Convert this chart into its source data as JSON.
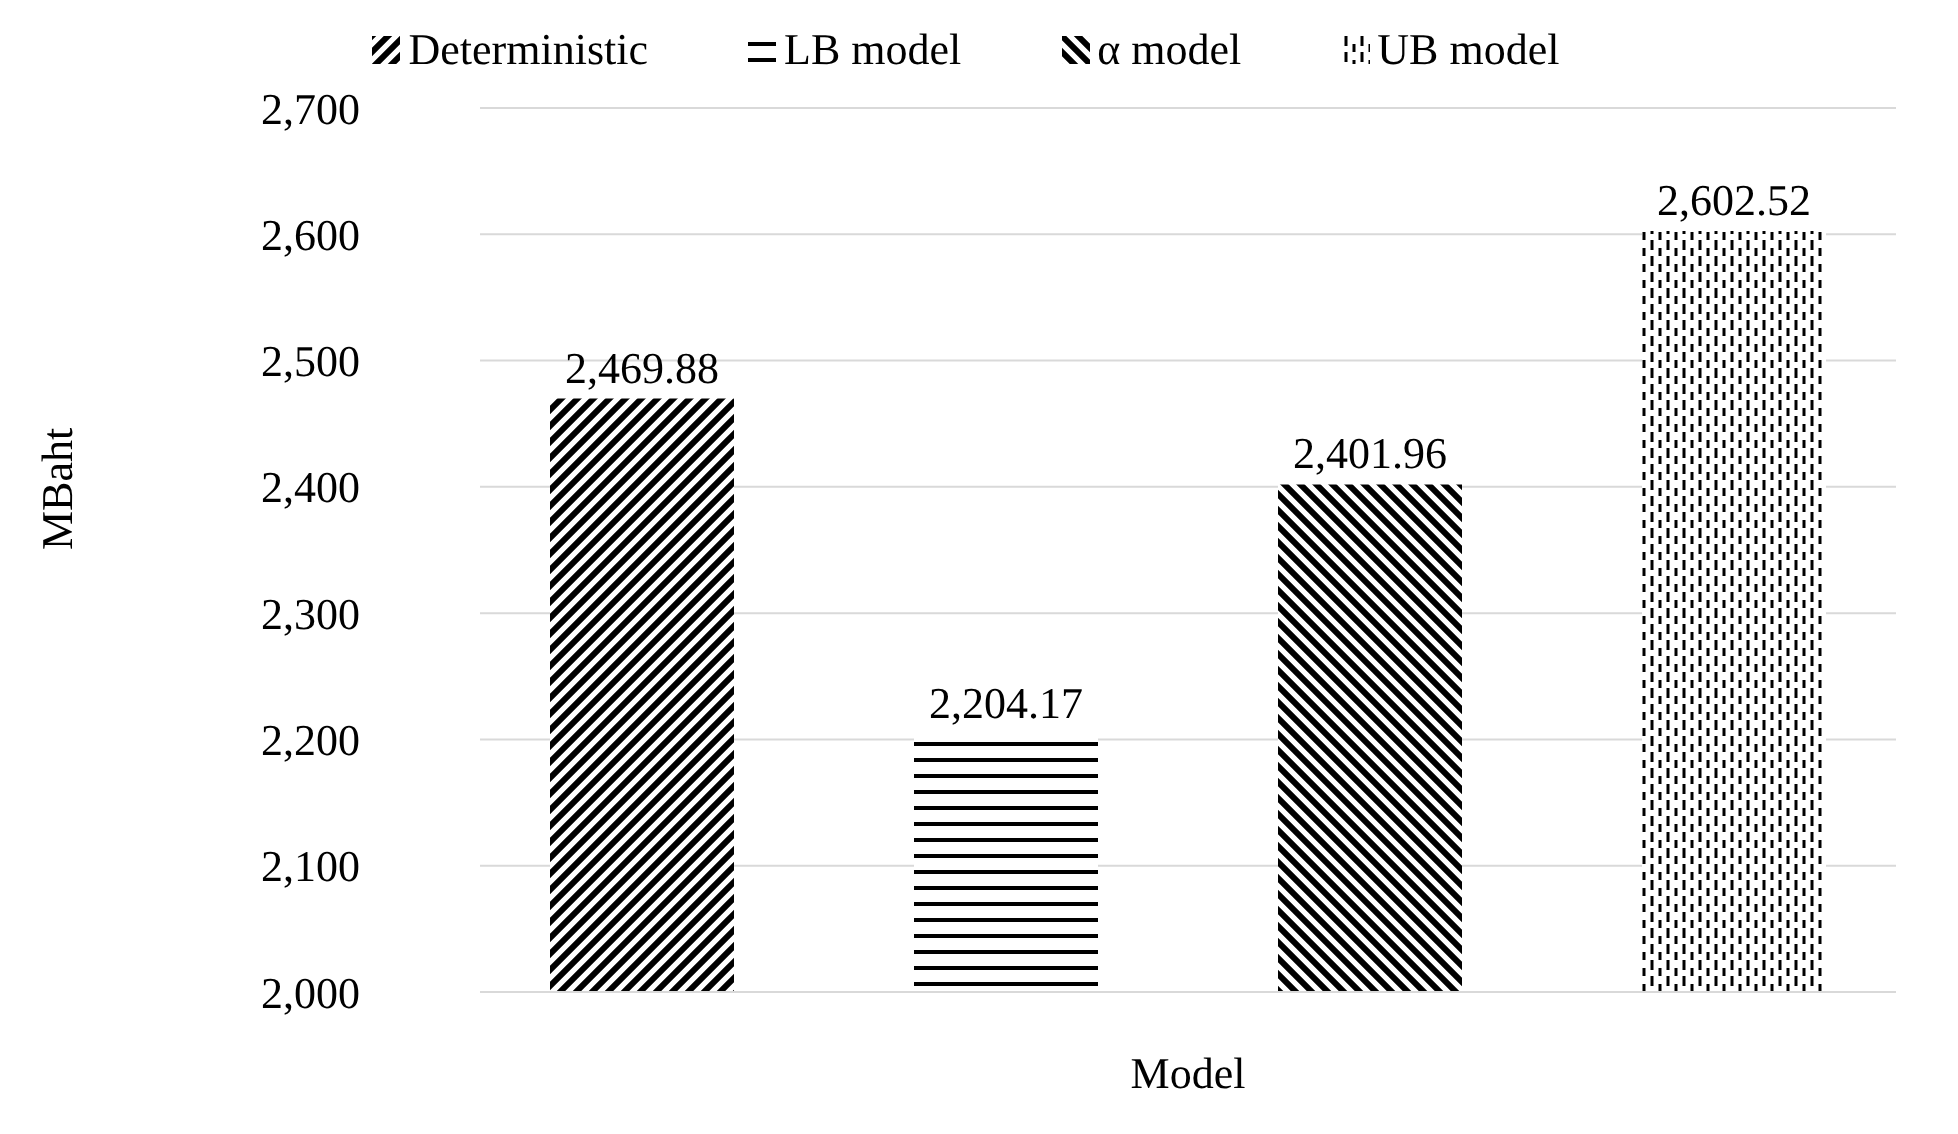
{
  "chart_data": {
    "type": "bar",
    "xlabel": "Model",
    "ylabel": "MBaht",
    "categories": [
      null
    ],
    "series": [
      {
        "name": "Deterministic",
        "color": "#000000",
        "values": [
          2469.88
        ],
        "value_labels": [
          "2,469.88"
        ]
      },
      {
        "name": "LB model",
        "color": "#000000",
        "values": [
          2204.17
        ],
        "value_labels": [
          "2,204.17"
        ]
      },
      {
        "name": "α model",
        "color": "#000000",
        "values": [
          2401.96
        ],
        "value_labels": [
          "2,401.96"
        ]
      },
      {
        "name": "UB model",
        "color": "#000000",
        "values": [
          2602.52
        ],
        "value_labels": [
          "2,602.52"
        ]
      }
    ],
    "ylim": [
      2000,
      2700
    ],
    "yticks": [
      {
        "value": 2000,
        "label": "2,000"
      },
      {
        "value": 2100,
        "label": "2,100"
      },
      {
        "value": 2200,
        "label": "2,200"
      },
      {
        "value": 2300,
        "label": "2,300"
      },
      {
        "value": 2400,
        "label": "2,400"
      },
      {
        "value": 2500,
        "label": "2,500"
      },
      {
        "value": 2600,
        "label": "2,600"
      },
      {
        "value": 2700,
        "label": "2,700"
      }
    ],
    "grid": "y",
    "legend": "top"
  }
}
